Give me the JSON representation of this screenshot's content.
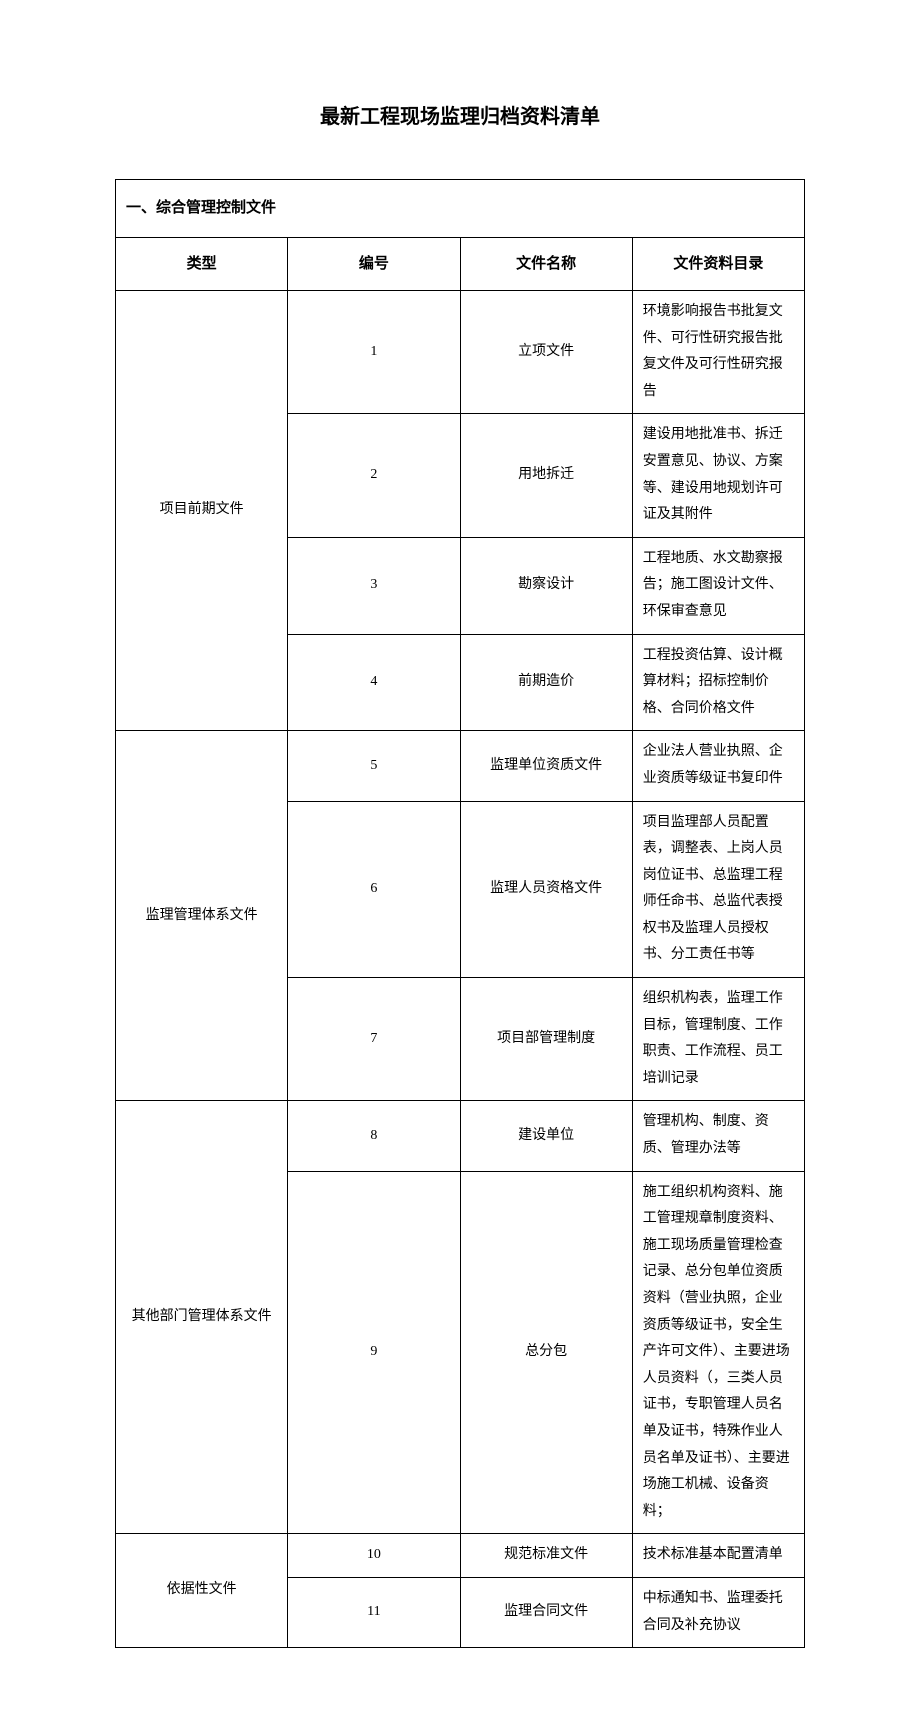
{
  "title": "最新工程现场监理归档资料清单",
  "section_header": "一、综合管理控制文件",
  "headers": {
    "type": "类型",
    "num": "编号",
    "name": "文件名称",
    "desc": "文件资料目录"
  },
  "groups": [
    {
      "type": "项目前期文件",
      "rows": [
        {
          "num": "1",
          "name": "立项文件",
          "desc": "环境影响报告书批复文件、可行性研究报告批复文件及可行性研究报告"
        },
        {
          "num": "2",
          "name": "用地拆迁",
          "desc": "建设用地批准书、拆迁安置意见、协议、方案等、建设用地规划许可证及其附件"
        },
        {
          "num": "3",
          "name": "勘察设计",
          "desc": "工程地质、水文勘察报告；施工图设计文件、环保审查意见"
        },
        {
          "num": "4",
          "name": "前期造价",
          "desc": "工程投资估算、设计概算材料；招标控制价格、合同价格文件"
        }
      ]
    },
    {
      "type": "监理管理体系文件",
      "rows": [
        {
          "num": "5",
          "name": "监理单位资质文件",
          "desc": "企业法人营业执照、企业资质等级证书复印件"
        },
        {
          "num": "6",
          "name": "监理人员资格文件",
          "desc": "项目监理部人员配置表，调整表、上岗人员岗位证书、总监理工程师任命书、总监代表授权书及监理人员授权书、分工责任书等"
        },
        {
          "num": "7",
          "name": "项目部管理制度",
          "desc": "组织机构表，监理工作目标，管理制度、工作职责、工作流程、员工培训记录"
        }
      ]
    },
    {
      "type": "其他部门管理体系文件",
      "rows": [
        {
          "num": "8",
          "name": "建设单位",
          "desc": "管理机构、制度、资质、管理办法等"
        },
        {
          "num": "9",
          "name": "总分包",
          "desc": "施工组织机构资料、施工管理规章制度资料、施工现场质量管理检查记录、总分包单位资质资料（营业执照，企业资质等级证书，安全生产许可文件）、主要进场人员资料（，三类人员证书，专职管理人员名单及证书，特殊作业人员名单及证书）、主要进场施工机械、设备资料；"
        }
      ]
    },
    {
      "type": "依据性文件",
      "rows": [
        {
          "num": "10",
          "name": "规范标准文件",
          "desc": "技术标准基本配置清单"
        },
        {
          "num": "11",
          "name": "监理合同文件",
          "desc": "中标通知书、监理委托合同及补充协议"
        }
      ]
    }
  ]
}
